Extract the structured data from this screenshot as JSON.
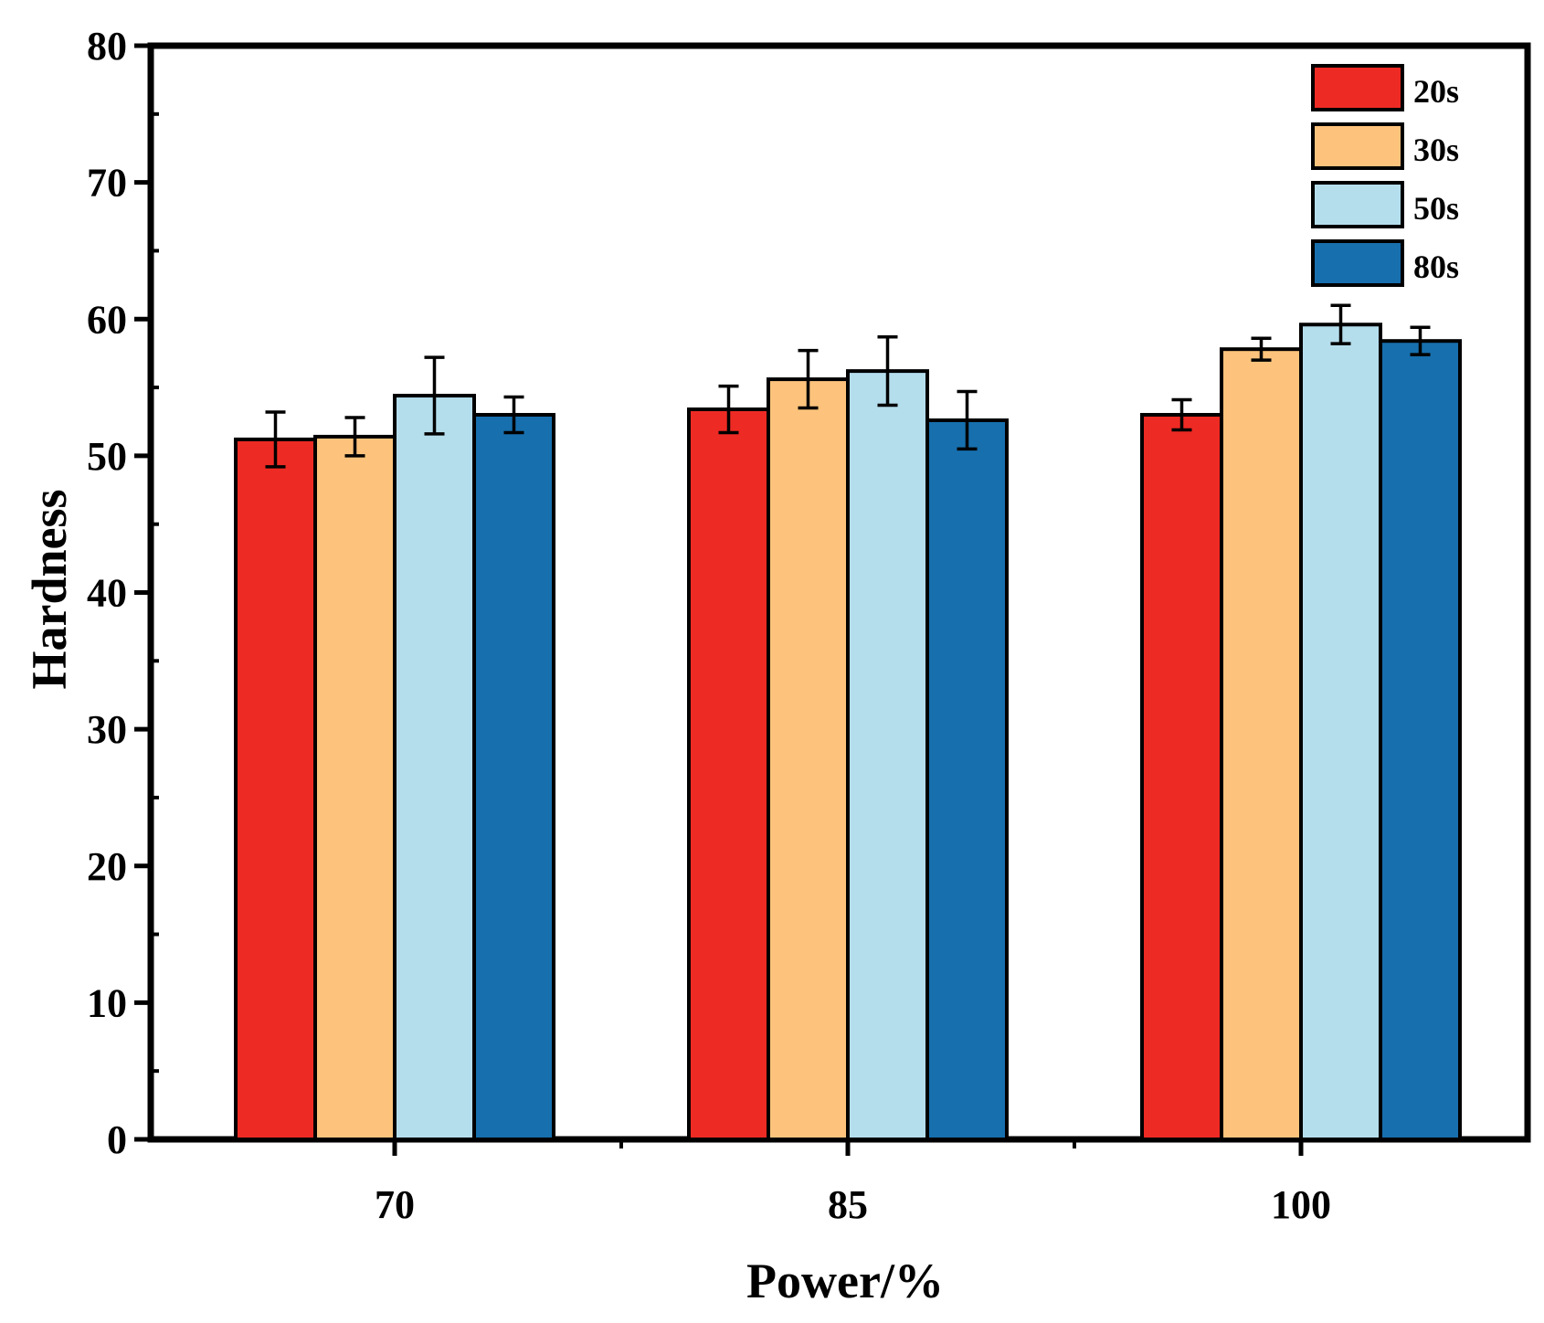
{
  "chart_data": {
    "type": "bar",
    "title": "",
    "xlabel": "Power/%",
    "ylabel": "Hardness",
    "ylim": [
      0,
      80
    ],
    "yticks": [
      0,
      10,
      20,
      30,
      40,
      50,
      60,
      70,
      80
    ],
    "categories": [
      "70",
      "85",
      "100"
    ],
    "legend_position": "top-right",
    "series": [
      {
        "name": "20s",
        "color": "#ee2a24",
        "values": [
          51.2,
          53.4,
          53.0
        ],
        "errors": [
          2.0,
          1.7,
          1.1
        ]
      },
      {
        "name": "30s",
        "color": "#fdc37c",
        "values": [
          51.4,
          55.6,
          57.8
        ],
        "errors": [
          1.4,
          2.1,
          0.8
        ]
      },
      {
        "name": "50s",
        "color": "#b5deed",
        "values": [
          54.4,
          56.2,
          59.6
        ],
        "errors": [
          2.8,
          2.5,
          1.4
        ]
      },
      {
        "name": "80s",
        "color": "#176fae",
        "values": [
          53.0,
          52.6,
          58.4
        ],
        "errors": [
          1.3,
          2.1,
          1.0
        ]
      }
    ]
  }
}
